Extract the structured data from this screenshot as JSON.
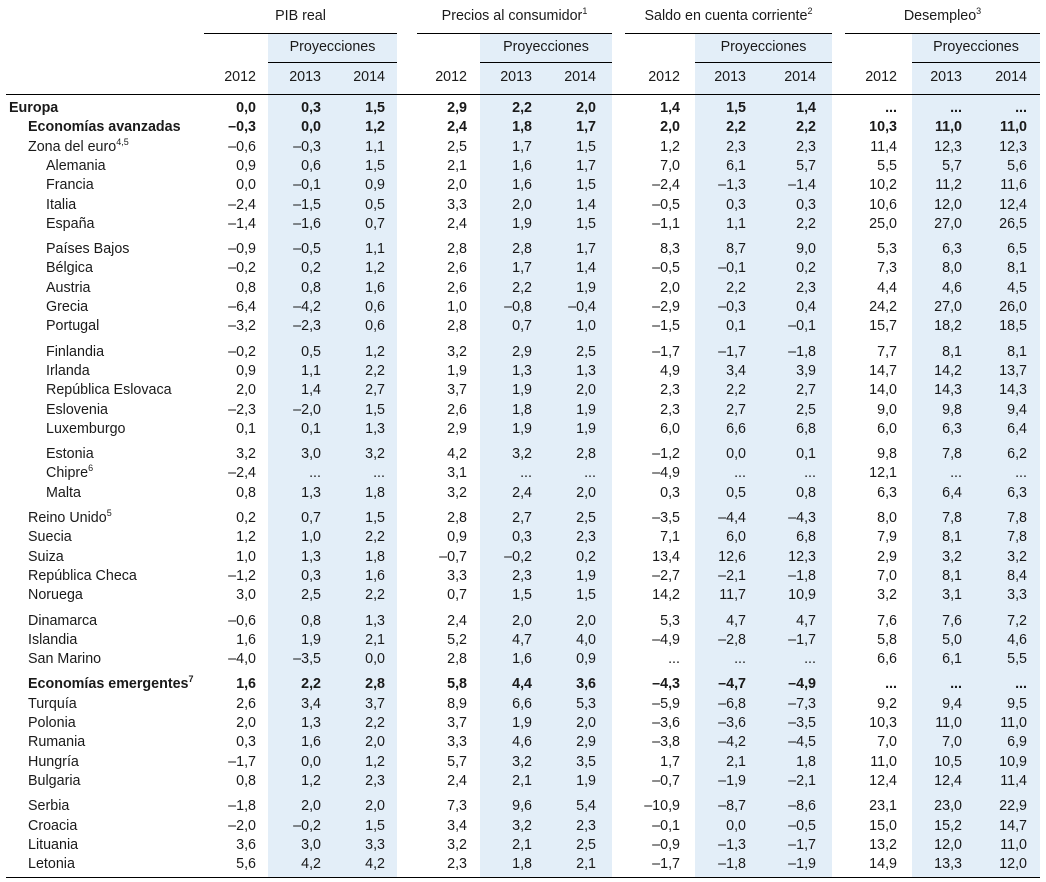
{
  "headers": {
    "groups": [
      "PIB real",
      "Precios al consumidor",
      "Saldo en cuenta corriente",
      "Desempleo"
    ],
    "group_notes": [
      "",
      "1",
      "2",
      "3"
    ],
    "proyecciones_label": "Proyecciones",
    "years": [
      "2012",
      "2013",
      "2014"
    ]
  },
  "rows": [
    {
      "label": "Europa",
      "note": "",
      "indent": 0,
      "bold": true,
      "gap": false,
      "values": [
        "0,0",
        "0,3",
        "1,5",
        "2,9",
        "2,2",
        "2,0",
        "1,4",
        "1,5",
        "1,4",
        "...",
        "...",
        "..."
      ]
    },
    {
      "label": "Economías avanzadas",
      "note": "",
      "indent": 1,
      "bold": true,
      "gap": false,
      "values": [
        "–0,3",
        "0,0",
        "1,2",
        "2,4",
        "1,8",
        "1,7",
        "2,0",
        "2,2",
        "2,2",
        "10,3",
        "11,0",
        "11,0"
      ]
    },
    {
      "label": "Zona del euro",
      "note": "4,5",
      "indent": 1,
      "bold": false,
      "gap": false,
      "values": [
        "–0,6",
        "–0,3",
        "1,1",
        "2,5",
        "1,7",
        "1,5",
        "1,2",
        "2,3",
        "2,3",
        "11,4",
        "12,3",
        "12,3"
      ]
    },
    {
      "label": "Alemania",
      "note": "",
      "indent": 2,
      "bold": false,
      "gap": false,
      "values": [
        "0,9",
        "0,6",
        "1,5",
        "2,1",
        "1,6",
        "1,7",
        "7,0",
        "6,1",
        "5,7",
        "5,5",
        "5,7",
        "5,6"
      ]
    },
    {
      "label": "Francia",
      "note": "",
      "indent": 2,
      "bold": false,
      "gap": false,
      "values": [
        "0,0",
        "–0,1",
        "0,9",
        "2,0",
        "1,6",
        "1,5",
        "–2,4",
        "–1,3",
        "–1,4",
        "10,2",
        "11,2",
        "11,6"
      ]
    },
    {
      "label": "Italia",
      "note": "",
      "indent": 2,
      "bold": false,
      "gap": false,
      "values": [
        "–2,4",
        "–1,5",
        "0,5",
        "3,3",
        "2,0",
        "1,4",
        "–0,5",
        "0,3",
        "0,3",
        "10,6",
        "12,0",
        "12,4"
      ]
    },
    {
      "label": "España",
      "note": "",
      "indent": 2,
      "bold": false,
      "gap": false,
      "values": [
        "–1,4",
        "–1,6",
        "0,7",
        "2,4",
        "1,9",
        "1,5",
        "–1,1",
        "1,1",
        "2,2",
        "25,0",
        "27,0",
        "26,5"
      ]
    },
    {
      "label": "Países Bajos",
      "note": "",
      "indent": 2,
      "bold": false,
      "gap": true,
      "values": [
        "–0,9",
        "–0,5",
        "1,1",
        "2,8",
        "2,8",
        "1,7",
        "8,3",
        "8,7",
        "9,0",
        "5,3",
        "6,3",
        "6,5"
      ]
    },
    {
      "label": "Bélgica",
      "note": "",
      "indent": 2,
      "bold": false,
      "gap": false,
      "values": [
        "–0,2",
        "0,2",
        "1,2",
        "2,6",
        "1,7",
        "1,4",
        "–0,5",
        "–0,1",
        "0,2",
        "7,3",
        "8,0",
        "8,1"
      ]
    },
    {
      "label": "Austria",
      "note": "",
      "indent": 2,
      "bold": false,
      "gap": false,
      "values": [
        "0,8",
        "0,8",
        "1,6",
        "2,6",
        "2,2",
        "1,9",
        "2,0",
        "2,2",
        "2,3",
        "4,4",
        "4,6",
        "4,5"
      ]
    },
    {
      "label": "Grecia",
      "note": "",
      "indent": 2,
      "bold": false,
      "gap": false,
      "values": [
        "–6,4",
        "–4,2",
        "0,6",
        "1,0",
        "–0,8",
        "–0,4",
        "–2,9",
        "–0,3",
        "0,4",
        "24,2",
        "27,0",
        "26,0"
      ]
    },
    {
      "label": "Portugal",
      "note": "",
      "indent": 2,
      "bold": false,
      "gap": false,
      "values": [
        "–3,2",
        "–2,3",
        "0,6",
        "2,8",
        "0,7",
        "1,0",
        "–1,5",
        "0,1",
        "–0,1",
        "15,7",
        "18,2",
        "18,5"
      ]
    },
    {
      "label": "Finlandia",
      "note": "",
      "indent": 2,
      "bold": false,
      "gap": true,
      "values": [
        "–0,2",
        "0,5",
        "1,2",
        "3,2",
        "2,9",
        "2,5",
        "–1,7",
        "–1,7",
        "–1,8",
        "7,7",
        "8,1",
        "8,1"
      ]
    },
    {
      "label": "Irlanda",
      "note": "",
      "indent": 2,
      "bold": false,
      "gap": false,
      "values": [
        "0,9",
        "1,1",
        "2,2",
        "1,9",
        "1,3",
        "1,3",
        "4,9",
        "3,4",
        "3,9",
        "14,7",
        "14,2",
        "13,7"
      ]
    },
    {
      "label": "República Eslovaca",
      "note": "",
      "indent": 2,
      "bold": false,
      "gap": false,
      "values": [
        "2,0",
        "1,4",
        "2,7",
        "3,7",
        "1,9",
        "2,0",
        "2,3",
        "2,2",
        "2,7",
        "14,0",
        "14,3",
        "14,3"
      ]
    },
    {
      "label": "Eslovenia",
      "note": "",
      "indent": 2,
      "bold": false,
      "gap": false,
      "values": [
        "–2,3",
        "–2,0",
        "1,5",
        "2,6",
        "1,8",
        "1,9",
        "2,3",
        "2,7",
        "2,5",
        "9,0",
        "9,8",
        "9,4"
      ]
    },
    {
      "label": "Luxemburgo",
      "note": "",
      "indent": 2,
      "bold": false,
      "gap": false,
      "values": [
        "0,1",
        "0,1",
        "1,3",
        "2,9",
        "1,9",
        "1,9",
        "6,0",
        "6,6",
        "6,8",
        "6,0",
        "6,3",
        "6,4"
      ]
    },
    {
      "label": "Estonia",
      "note": "",
      "indent": 2,
      "bold": false,
      "gap": true,
      "values": [
        "3,2",
        "3,0",
        "3,2",
        "4,2",
        "3,2",
        "2,8",
        "–1,2",
        "0,0",
        "0,1",
        "9,8",
        "7,8",
        "6,2"
      ]
    },
    {
      "label": "Chipre",
      "note": "6",
      "indent": 2,
      "bold": false,
      "gap": false,
      "values": [
        "–2,4",
        "...",
        "...",
        "3,1",
        "...",
        "...",
        "–4,9",
        "...",
        "...",
        "12,1",
        "...",
        "..."
      ]
    },
    {
      "label": "Malta",
      "note": "",
      "indent": 2,
      "bold": false,
      "gap": false,
      "values": [
        "0,8",
        "1,3",
        "1,8",
        "3,2",
        "2,4",
        "2,0",
        "0,3",
        "0,5",
        "0,8",
        "6,3",
        "6,4",
        "6,3"
      ]
    },
    {
      "label": "Reino Unido",
      "note": "5",
      "indent": 1,
      "bold": false,
      "gap": true,
      "values": [
        "0,2",
        "0,7",
        "1,5",
        "2,8",
        "2,7",
        "2,5",
        "–3,5",
        "–4,4",
        "–4,3",
        "8,0",
        "7,8",
        "7,8"
      ]
    },
    {
      "label": "Suecia",
      "note": "",
      "indent": 1,
      "bold": false,
      "gap": false,
      "values": [
        "1,2",
        "1,0",
        "2,2",
        "0,9",
        "0,3",
        "2,3",
        "7,1",
        "6,0",
        "6,8",
        "7,9",
        "8,1",
        "7,8"
      ]
    },
    {
      "label": "Suiza",
      "note": "",
      "indent": 1,
      "bold": false,
      "gap": false,
      "values": [
        "1,0",
        "1,3",
        "1,8",
        "–0,7",
        "–0,2",
        "0,2",
        "13,4",
        "12,6",
        "12,3",
        "2,9",
        "3,2",
        "3,2"
      ]
    },
    {
      "label": "República Checa",
      "note": "",
      "indent": 1,
      "bold": false,
      "gap": false,
      "values": [
        "–1,2",
        "0,3",
        "1,6",
        "3,3",
        "2,3",
        "1,9",
        "–2,7",
        "–2,1",
        "–1,8",
        "7,0",
        "8,1",
        "8,4"
      ]
    },
    {
      "label": "Noruega",
      "note": "",
      "indent": 1,
      "bold": false,
      "gap": false,
      "values": [
        "3,0",
        "2,5",
        "2,2",
        "0,7",
        "1,5",
        "1,5",
        "14,2",
        "11,7",
        "10,9",
        "3,2",
        "3,1",
        "3,3"
      ]
    },
    {
      "label": "Dinamarca",
      "note": "",
      "indent": 1,
      "bold": false,
      "gap": true,
      "values": [
        "–0,6",
        "0,8",
        "1,3",
        "2,4",
        "2,0",
        "2,0",
        "5,3",
        "4,7",
        "4,7",
        "7,6",
        "7,6",
        "7,2"
      ]
    },
    {
      "label": "Islandia",
      "note": "",
      "indent": 1,
      "bold": false,
      "gap": false,
      "values": [
        "1,6",
        "1,9",
        "2,1",
        "5,2",
        "4,7",
        "4,0",
        "–4,9",
        "–2,8",
        "–1,7",
        "5,8",
        "5,0",
        "4,6"
      ]
    },
    {
      "label": "San Marino",
      "note": "",
      "indent": 1,
      "bold": false,
      "gap": false,
      "values": [
        "–4,0",
        "–3,5",
        "0,0",
        "2,8",
        "1,6",
        "0,9",
        "...",
        "...",
        "...",
        "6,6",
        "6,1",
        "5,5"
      ]
    },
    {
      "label": "Economías emergentes",
      "note": "7",
      "indent": 1,
      "bold": true,
      "gap": true,
      "values": [
        "1,6",
        "2,2",
        "2,8",
        "5,8",
        "4,4",
        "3,6",
        "–4,3",
        "–4,7",
        "–4,9",
        "...",
        "...",
        "..."
      ]
    },
    {
      "label": "Turquía",
      "note": "",
      "indent": 1,
      "bold": false,
      "gap": false,
      "values": [
        "2,6",
        "3,4",
        "3,7",
        "8,9",
        "6,6",
        "5,3",
        "–5,9",
        "–6,8",
        "–7,3",
        "9,2",
        "9,4",
        "9,5"
      ]
    },
    {
      "label": "Polonia",
      "note": "",
      "indent": 1,
      "bold": false,
      "gap": false,
      "values": [
        "2,0",
        "1,3",
        "2,2",
        "3,7",
        "1,9",
        "2,0",
        "–3,6",
        "–3,6",
        "–3,5",
        "10,3",
        "11,0",
        "11,0"
      ]
    },
    {
      "label": "Rumania",
      "note": "",
      "indent": 1,
      "bold": false,
      "gap": false,
      "values": [
        "0,3",
        "1,6",
        "2,0",
        "3,3",
        "4,6",
        "2,9",
        "–3,8",
        "–4,2",
        "–4,5",
        "7,0",
        "7,0",
        "6,9"
      ]
    },
    {
      "label": "Hungría",
      "note": "",
      "indent": 1,
      "bold": false,
      "gap": false,
      "values": [
        "–1,7",
        "0,0",
        "1,2",
        "5,7",
        "3,2",
        "3,5",
        "1,7",
        "2,1",
        "1,8",
        "11,0",
        "10,5",
        "10,9"
      ]
    },
    {
      "label": "Bulgaria",
      "note": "",
      "indent": 1,
      "bold": false,
      "gap": false,
      "values": [
        "0,8",
        "1,2",
        "2,3",
        "2,4",
        "2,1",
        "1,9",
        "–0,7",
        "–1,9",
        "–2,1",
        "12,4",
        "12,4",
        "11,4"
      ]
    },
    {
      "label": "Serbia",
      "note": "",
      "indent": 1,
      "bold": false,
      "gap": true,
      "values": [
        "–1,8",
        "2,0",
        "2,0",
        "7,3",
        "9,6",
        "5,4",
        "–10,9",
        "–8,7",
        "–8,6",
        "23,1",
        "23,0",
        "22,9"
      ]
    },
    {
      "label": "Croacia",
      "note": "",
      "indent": 1,
      "bold": false,
      "gap": false,
      "values": [
        "–2,0",
        "–0,2",
        "1,5",
        "3,4",
        "3,2",
        "2,3",
        "–0,1",
        "0,0",
        "–0,5",
        "15,0",
        "15,2",
        "14,7"
      ]
    },
    {
      "label": "Lituania",
      "note": "",
      "indent": 1,
      "bold": false,
      "gap": false,
      "values": [
        "3,6",
        "3,0",
        "3,3",
        "3,2",
        "2,1",
        "2,5",
        "–0,9",
        "–1,3",
        "–1,7",
        "13,2",
        "12,0",
        "11,0"
      ]
    },
    {
      "label": "Letonia",
      "note": "",
      "indent": 1,
      "bold": false,
      "gap": false,
      "values": [
        "5,6",
        "4,2",
        "4,2",
        "2,3",
        "1,8",
        "2,1",
        "–1,7",
        "–1,8",
        "–1,9",
        "14,9",
        "13,3",
        "12,0"
      ]
    }
  ]
}
